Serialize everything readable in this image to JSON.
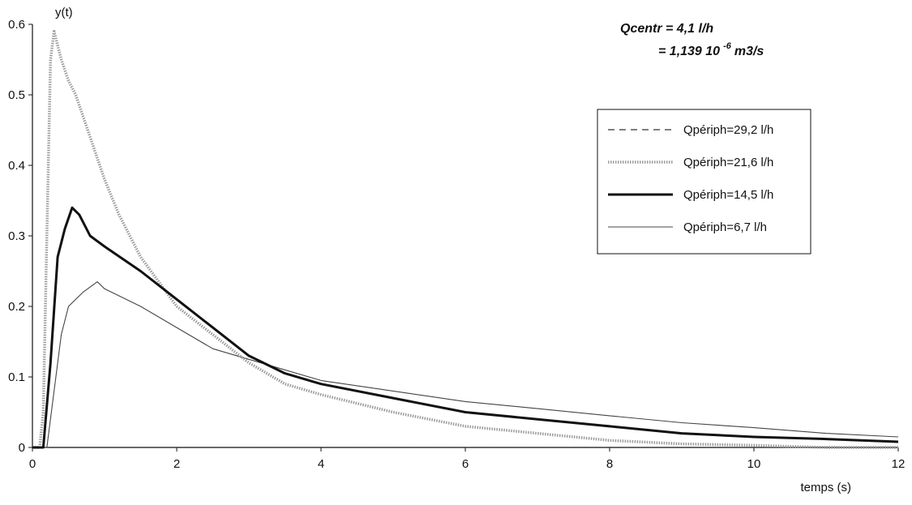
{
  "chart_data": {
    "type": "line",
    "xlabel": "temps (s)",
    "ylabel": "y(t)",
    "xlim": [
      0,
      12
    ],
    "ylim": [
      0,
      0.6
    ],
    "xticks": [
      0,
      2,
      4,
      6,
      8,
      10,
      12
    ],
    "yticks": [
      0,
      0.1,
      0.2,
      0.3,
      0.4,
      0.5,
      0.6
    ],
    "xtick_labels": [
      "0",
      "2",
      "4",
      "6",
      "8",
      "10",
      "12"
    ],
    "ytick_labels": [
      "0",
      "0.1",
      "0.2",
      "0.3",
      "0.4",
      "0.5",
      "0.6"
    ],
    "grid": false,
    "legend_position": "right",
    "annotation": {
      "line1": "Qcentr = 4,1 l/h",
      "line2_prefix": "= 1,139 10",
      "line2_sup": "-6",
      "line2_suffix": "m3/s"
    },
    "series": [
      {
        "name": "Qpériph=29,2 l/h",
        "style": "dashed",
        "color": "#333333",
        "points": [
          [
            0.1,
            0.0
          ],
          [
            12,
            0.0
          ]
        ]
      },
      {
        "name": "Qpériph=21,6 l/h",
        "style": "dotted-thick",
        "color": "#9a9a9a",
        "points": [
          [
            0,
            0.0
          ],
          [
            0.1,
            0.0
          ],
          [
            0.15,
            0.05
          ],
          [
            0.2,
            0.3
          ],
          [
            0.25,
            0.55
          ],
          [
            0.3,
            0.59
          ],
          [
            0.4,
            0.55
          ],
          [
            0.5,
            0.52
          ],
          [
            0.6,
            0.5
          ],
          [
            0.8,
            0.44
          ],
          [
            1.0,
            0.38
          ],
          [
            1.2,
            0.33
          ],
          [
            1.5,
            0.27
          ],
          [
            2.0,
            0.2
          ],
          [
            2.5,
            0.16
          ],
          [
            3.0,
            0.12
          ],
          [
            3.5,
            0.09
          ],
          [
            4.0,
            0.075
          ],
          [
            5.0,
            0.05
          ],
          [
            6.0,
            0.03
          ],
          [
            7.0,
            0.02
          ],
          [
            8.0,
            0.01
          ],
          [
            9.0,
            0.005
          ],
          [
            10.0,
            0.003
          ],
          [
            11.0,
            0.0
          ],
          [
            12.0,
            0.0
          ]
        ]
      },
      {
        "name": "Qpériph=14,5 l/h",
        "style": "solid-thick",
        "color": "#111111",
        "points": [
          [
            0,
            0.0
          ],
          [
            0.15,
            0.0
          ],
          [
            0.25,
            0.12
          ],
          [
            0.35,
            0.27
          ],
          [
            0.45,
            0.31
          ],
          [
            0.55,
            0.34
          ],
          [
            0.65,
            0.33
          ],
          [
            0.8,
            0.3
          ],
          [
            1.0,
            0.285
          ],
          [
            1.5,
            0.25
          ],
          [
            2.0,
            0.21
          ],
          [
            2.5,
            0.17
          ],
          [
            3.0,
            0.13
          ],
          [
            3.5,
            0.105
          ],
          [
            4.0,
            0.09
          ],
          [
            5.0,
            0.07
          ],
          [
            6.0,
            0.05
          ],
          [
            7.0,
            0.04
          ],
          [
            8.0,
            0.03
          ],
          [
            9.0,
            0.02
          ],
          [
            10.0,
            0.015
          ],
          [
            11.0,
            0.012
          ],
          [
            12.0,
            0.008
          ]
        ]
      },
      {
        "name": "Qpériph=6,7 l/h",
        "style": "solid-thin",
        "color": "#444444",
        "points": [
          [
            0,
            0.0
          ],
          [
            0.2,
            0.0
          ],
          [
            0.3,
            0.08
          ],
          [
            0.4,
            0.16
          ],
          [
            0.5,
            0.2
          ],
          [
            0.7,
            0.22
          ],
          [
            0.9,
            0.235
          ],
          [
            1.0,
            0.225
          ],
          [
            1.5,
            0.2
          ],
          [
            2.0,
            0.17
          ],
          [
            2.5,
            0.14
          ],
          [
            3.0,
            0.125
          ],
          [
            3.5,
            0.11
          ],
          [
            4.0,
            0.095
          ],
          [
            5.0,
            0.08
          ],
          [
            6.0,
            0.065
          ],
          [
            7.0,
            0.055
          ],
          [
            8.0,
            0.045
          ],
          [
            9.0,
            0.035
          ],
          [
            10.0,
            0.028
          ],
          [
            11.0,
            0.02
          ],
          [
            12.0,
            0.015
          ]
        ]
      }
    ]
  }
}
